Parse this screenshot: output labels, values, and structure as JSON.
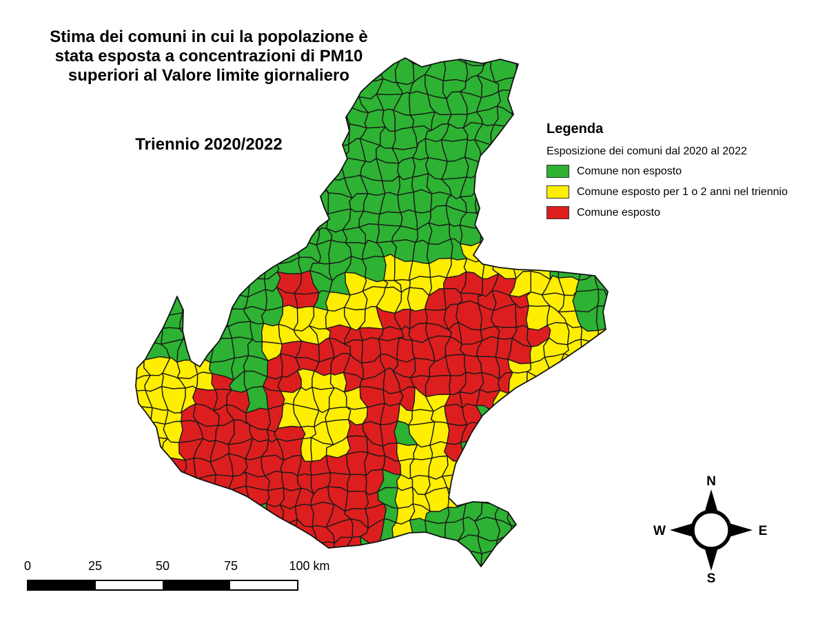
{
  "title": {
    "main": "Stima dei comuni in cui la popolazione è stata esposta a concentrazioni di PM10 superiori al Valore limite giornaliero",
    "period": "Triennio 2020/2022"
  },
  "legend": {
    "heading": "Legenda",
    "subtitle": "Esposizione dei comuni dal 2020 al 2022",
    "items": [
      {
        "key": "non_esposto",
        "label": "Comune non esposto",
        "color": "#2DB233"
      },
      {
        "key": "esposto_1_2_anni",
        "label": "Comune esposto per 1 o 2 anni nel triennio",
        "color": "#FFEE00"
      },
      {
        "key": "esposto",
        "label": "Comune esposto",
        "color": "#DD1E1E"
      }
    ]
  },
  "scale_bar": {
    "tick_labels": [
      "0",
      "25",
      "50",
      "75"
    ],
    "end_label": "100 km",
    "segment_colors": [
      "#000000",
      "#FFFFFF",
      "#000000",
      "#FFFFFF"
    ]
  },
  "compass": {
    "north": "N",
    "east": "E",
    "south": "S",
    "west": "W"
  },
  "map": {
    "region": "Veneto",
    "municipality_border_color": "#1A1A1A",
    "outline_color": "#111111",
    "water_background": "#FFFFFF"
  }
}
